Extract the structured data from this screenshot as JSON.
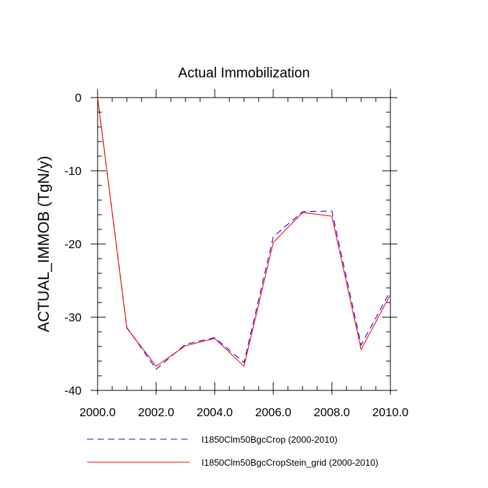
{
  "chart_data": {
    "type": "line",
    "title": "Actual Immobilization",
    "xlabel": "",
    "ylabel": "ACTUAL_IMMOB  (TgN/y)",
    "xlim": [
      2000,
      2010
    ],
    "ylim": [
      -40,
      0
    ],
    "x_ticks": [
      2000,
      2002,
      2004,
      2006,
      2008,
      2010
    ],
    "x_tick_labels": [
      "2000.0",
      "2002.0",
      "2004.0",
      "2006.0",
      "2008.0",
      "2010.0"
    ],
    "y_ticks": [
      0,
      -10,
      -20,
      -30,
      -40
    ],
    "y_tick_labels": [
      "0",
      "-10",
      "-20",
      "-30",
      "-40"
    ],
    "x": [
      2000,
      2001,
      2002,
      2003,
      2004,
      2005,
      2006,
      2007,
      2008,
      2009,
      2010
    ],
    "series": [
      {
        "name": "I1850Clm50BgcCrop (2000-2010)",
        "color": "#0000ff",
        "dash": "dashed",
        "values": [
          0,
          -31.4,
          -37.1,
          -33.7,
          -32.8,
          -36.2,
          -19.0,
          -15.6,
          -15.5,
          -33.8,
          -26.4
        ]
      },
      {
        "name": "I1850Clm50BgcCropStein_grid (2000-2010)",
        "color": "#ff0000",
        "dash": "solid",
        "values": [
          0,
          -31.5,
          -36.7,
          -33.9,
          -32.9,
          -36.7,
          -19.8,
          -15.7,
          -16.2,
          -34.4,
          -26.9
        ]
      }
    ],
    "grid": false,
    "legend_position": "bottom"
  }
}
